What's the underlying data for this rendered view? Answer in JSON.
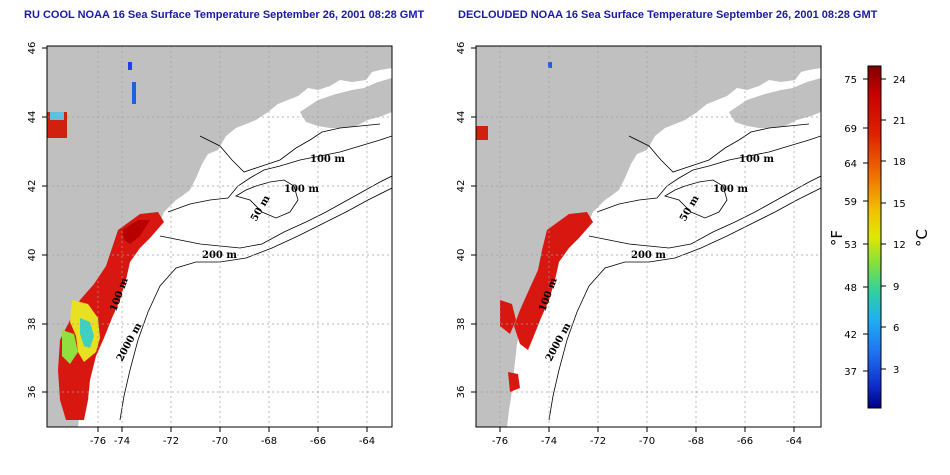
{
  "panels": [
    {
      "id": "left",
      "title": "RU COOL NOAA 16 Sea Surface Temperature September 26, 2001 08:28 GMT",
      "x_ticks": [
        "-76",
        "-74",
        "-72",
        "-70",
        "-68",
        "-66",
        "-64"
      ],
      "y_ticks": [
        "36",
        "38",
        "40",
        "42",
        "44",
        "46"
      ],
      "contour_labels": [
        "100 m",
        "100 m",
        "50 m",
        "200 m",
        "100 m",
        "2000 m"
      ]
    },
    {
      "id": "right",
      "title": "DECLOUDED NOAA 16 Sea Surface Temperature September 26, 2001 08:28 GMT",
      "x_ticks": [
        "-76",
        "-74",
        "-72",
        "-70",
        "-68",
        "-66",
        "-64"
      ],
      "y_ticks": [
        "36",
        "38",
        "40",
        "42",
        "44",
        "46"
      ],
      "contour_labels": [
        "100 m",
        "100 m",
        "50 m",
        "200 m",
        "100 m",
        "2000 m"
      ]
    }
  ],
  "colorbar": {
    "fahrenheit_ticks": [
      "75",
      "69",
      "64",
      "59",
      "53",
      "48",
      "42",
      "37"
    ],
    "celsius_ticks": [
      "24",
      "21",
      "18",
      "15",
      "12",
      "9",
      "6",
      "3"
    ],
    "fahrenheit_label": "°F",
    "celsius_label": "°C",
    "colors": [
      "#7a0000",
      "#c80000",
      "#e03000",
      "#f07000",
      "#f0b000",
      "#e8e800",
      "#a0e020",
      "#40d080",
      "#20c0e0",
      "#2080f0",
      "#1030e0",
      "#000090"
    ]
  },
  "colors": {
    "land": "#c0c0c0",
    "no_data": "#ffffff",
    "title": "#1a1aa0",
    "grid": "#a0a0a0"
  }
}
